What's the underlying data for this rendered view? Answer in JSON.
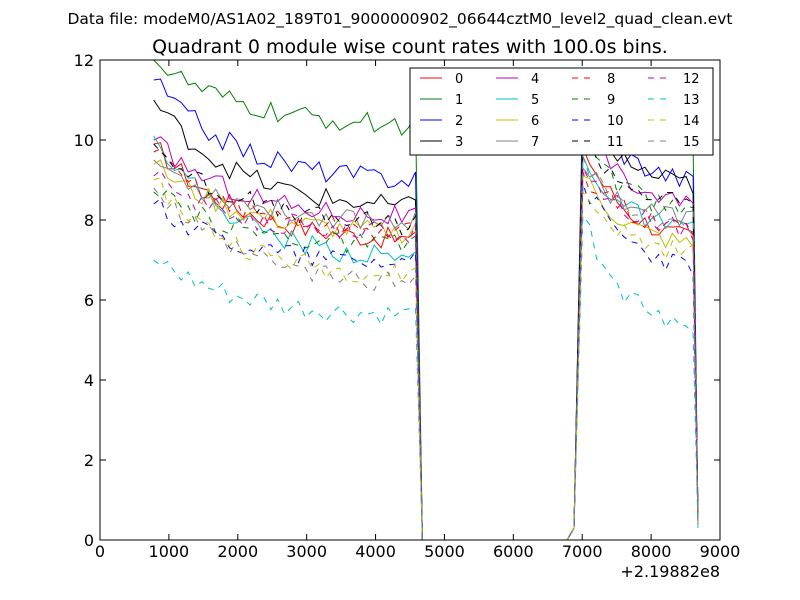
{
  "header": {
    "file_label": "Data file: modeM0/AS1A02_189T01_9000000902_06644cztM0_level2_quad_clean.evt"
  },
  "chart_data": {
    "type": "line",
    "title": "Quadrant 0 module wise count rates with 100.0s bins.",
    "xlabel": "",
    "ylabel": "",
    "x_offset_label": "+2.19882e8",
    "xlim": [
      0,
      9000
    ],
    "ylim": [
      0,
      12
    ],
    "xticks": [
      0,
      1000,
      2000,
      3000,
      4000,
      5000,
      6000,
      7000,
      8000,
      9000
    ],
    "yticks": [
      0,
      2,
      4,
      6,
      8,
      10,
      12
    ],
    "legend_position": "top-right",
    "legend_columns": 4,
    "x_segments": [
      {
        "start": 780,
        "end": 4580,
        "step": 100
      },
      {
        "start": 4580,
        "end": 4680,
        "step": 100
      },
      {
        "start": 4680,
        "end": 6880,
        "step": 100
      },
      {
        "start": 6880,
        "end": 7010,
        "step": 130
      },
      {
        "start": 7010,
        "end": 8610,
        "step": 100
      },
      {
        "start": 8610,
        "end": 8680,
        "step": 70
      }
    ],
    "series": [
      {
        "name": "0",
        "color": "#ff0000",
        "dash": "solid",
        "start": 9.9,
        "end_first": 7.4,
        "restart": 9.8,
        "end_second": 7.3,
        "final": 0.6
      },
      {
        "name": "1",
        "color": "#008000",
        "dash": "solid",
        "start": 12.0,
        "end_first": 10.3,
        "restart": 11.3,
        "end_second": 9.9,
        "final": 0.5
      },
      {
        "name": "2",
        "color": "#0000ff",
        "dash": "solid",
        "start": 11.5,
        "end_first": 8.9,
        "restart": 10.9,
        "end_second": 8.8,
        "final": 0.5
      },
      {
        "name": "3",
        "color": "#000000",
        "dash": "solid",
        "start": 11.0,
        "end_first": 8.2,
        "restart": 10.6,
        "end_second": 8.7,
        "final": 0.5
      },
      {
        "name": "4",
        "color": "#bf00bf",
        "dash": "solid",
        "start": 10.0,
        "end_first": 8.0,
        "restart": 10.3,
        "end_second": 8.2,
        "final": 0.5
      },
      {
        "name": "5",
        "color": "#00bfbf",
        "dash": "solid",
        "start": 10.1,
        "end_first": 6.9,
        "restart": 9.6,
        "end_second": 7.5,
        "final": 0.5
      },
      {
        "name": "6",
        "color": "#bfbf00",
        "dash": "solid",
        "start": 9.4,
        "end_first": 7.6,
        "restart": 9.1,
        "end_second": 7.2,
        "final": 0.4
      },
      {
        "name": "7",
        "color": "#808080",
        "dash": "solid",
        "start": 9.5,
        "end_first": 7.9,
        "restart": 9.3,
        "end_second": 7.9,
        "final": 0.4
      },
      {
        "name": "8",
        "color": "#ff0000",
        "dash": "dashed",
        "start": 9.7,
        "end_first": 7.6,
        "restart": 9.2,
        "end_second": 7.6,
        "final": 0.5
      },
      {
        "name": "9",
        "color": "#008000",
        "dash": "dashed",
        "start": 8.7,
        "end_first": 7.3,
        "restart": 10.0,
        "end_second": 8.0,
        "final": 0.5
      },
      {
        "name": "10",
        "color": "#0000ff",
        "dash": "dashed",
        "start": 8.4,
        "end_first": 6.9,
        "restart": 8.9,
        "end_second": 6.6,
        "final": 0.4
      },
      {
        "name": "11",
        "color": "#000000",
        "dash": "dashed",
        "start": 9.9,
        "end_first": 7.8,
        "restart": 10.1,
        "end_second": 8.2,
        "final": 0.5
      },
      {
        "name": "12",
        "color": "#bf00bf",
        "dash": "dashed",
        "start": 9.1,
        "end_first": 7.6,
        "restart": 9.3,
        "end_second": 7.6,
        "final": 0.4
      },
      {
        "name": "13",
        "color": "#00bfbf",
        "dash": "dashed",
        "start": 7.0,
        "end_first": 5.5,
        "restart": 8.1,
        "end_second": 4.9,
        "final": 0.3
      },
      {
        "name": "14",
        "color": "#bfbf00",
        "dash": "dashed",
        "start": 9.0,
        "end_first": 6.5,
        "restart": 8.7,
        "end_second": 7.0,
        "final": 0.4
      },
      {
        "name": "15",
        "color": "#808080",
        "dash": "dashed",
        "start": 8.8,
        "end_first": 6.3,
        "restart": 9.6,
        "end_second": 7.5,
        "final": 0.4
      }
    ]
  }
}
